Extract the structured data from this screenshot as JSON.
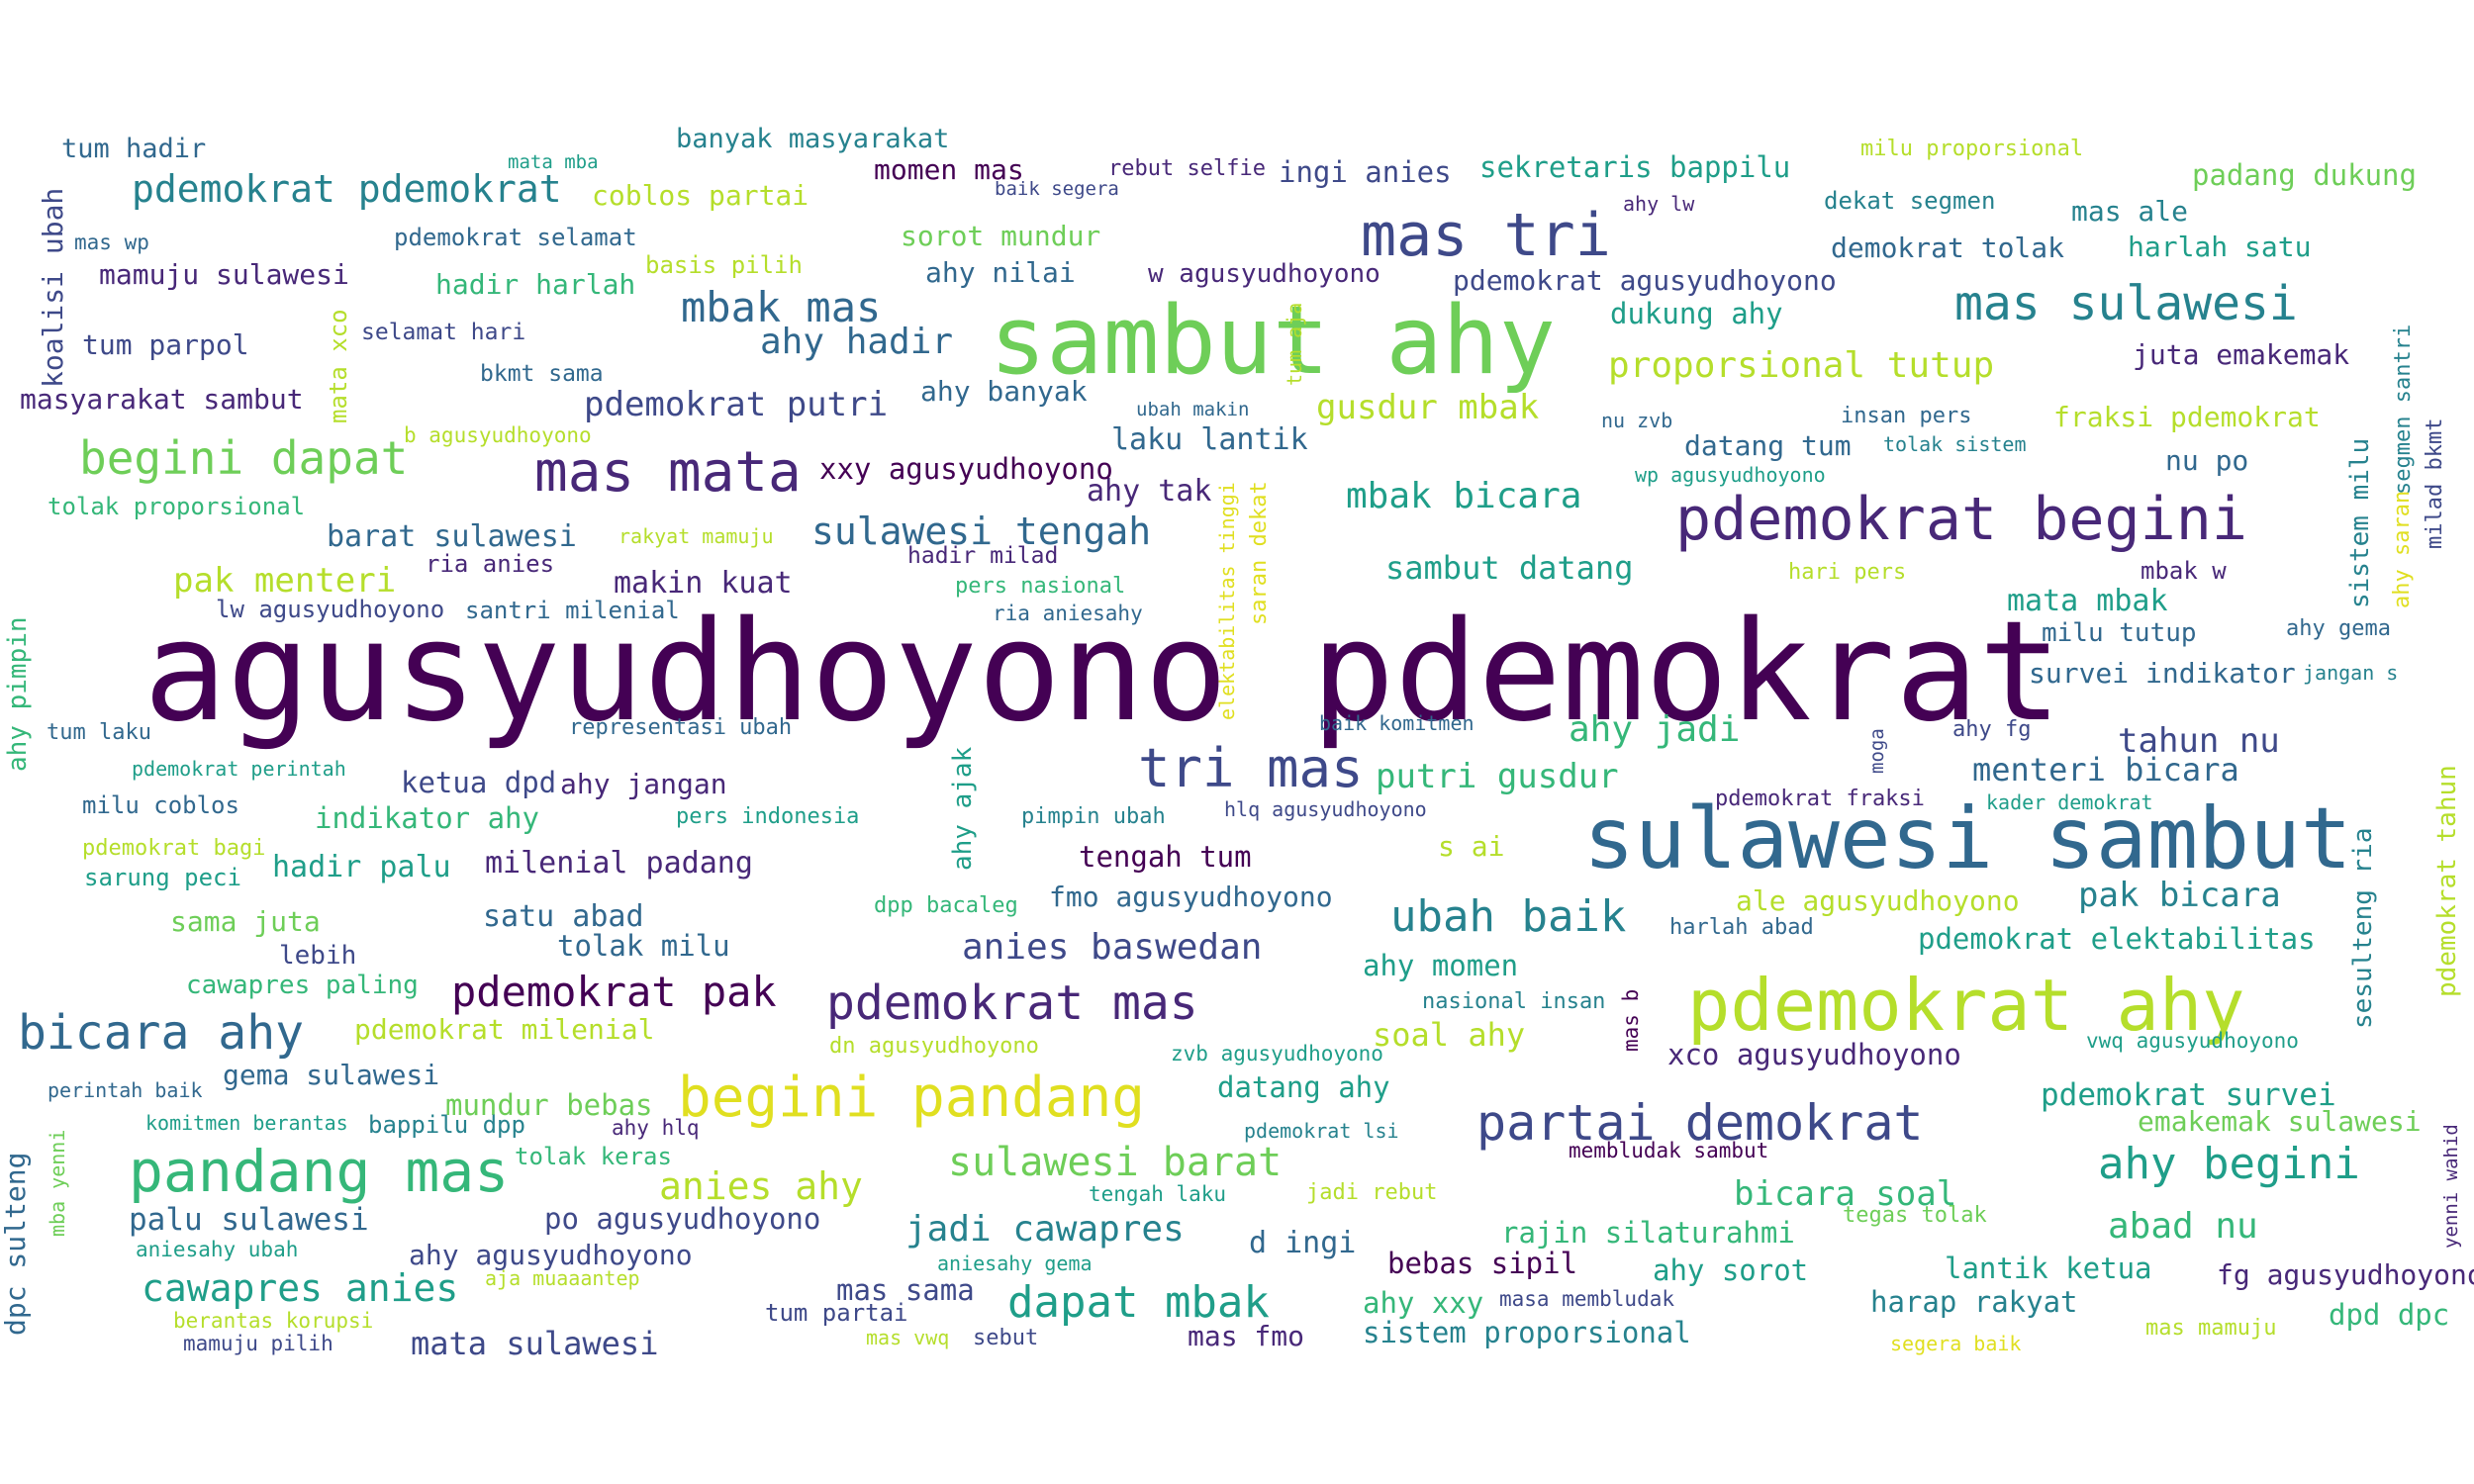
{
  "words": [
    {
      "id": "w0",
      "text": "agusyudhoyono pdemokrat",
      "c": 0
    },
    {
      "id": "w1",
      "text": "sambut ahy",
      "c": 7
    },
    {
      "id": "w2",
      "text": "sulawesi sambut",
      "c": 3
    },
    {
      "id": "w3",
      "text": "pdemokrat ahy",
      "c": 8
    },
    {
      "id": "w4",
      "text": "pdemokrat begini",
      "c": 1
    },
    {
      "id": "w5",
      "text": "mas tri",
      "c": 2
    },
    {
      "id": "w6",
      "text": "mas mata",
      "c": 1
    },
    {
      "id": "w7",
      "text": "tri mas",
      "c": 2
    },
    {
      "id": "w8",
      "text": "begini pandang",
      "c": 9
    },
    {
      "id": "w9",
      "text": "pandang mas",
      "c": 6
    },
    {
      "id": "w10",
      "text": "begini dapat",
      "c": 7
    },
    {
      "id": "w11",
      "text": "pdemokrat mas",
      "c": 1
    },
    {
      "id": "w12",
      "text": "mas sulawesi",
      "c": 4
    },
    {
      "id": "w13",
      "text": "partai demokrat",
      "c": 2
    },
    {
      "id": "w14",
      "text": "bicara ahy",
      "c": 3
    },
    {
      "id": "w15",
      "text": "ahy begini",
      "c": 5
    },
    {
      "id": "w16",
      "text": "pdemokrat pak",
      "c": 0
    },
    {
      "id": "w17",
      "text": "dapat mbak",
      "c": 5
    },
    {
      "id": "w18",
      "text": "ubah baik",
      "c": 4
    },
    {
      "id": "w19",
      "text": "pdemokrat pdemokrat",
      "c": 4
    },
    {
      "id": "w20",
      "text": "mbak mas",
      "c": 3
    },
    {
      "id": "w21",
      "text": "sulawesi tengah",
      "c": 3
    },
    {
      "id": "w22",
      "text": "sulawesi barat",
      "c": 7
    },
    {
      "id": "w23",
      "text": "anies baswedan",
      "c": 2
    },
    {
      "id": "w24",
      "text": "jadi cawapres",
      "c": 4
    },
    {
      "id": "w25",
      "text": "anies ahy",
      "c": 8
    },
    {
      "id": "w26",
      "text": "cawapres anies",
      "c": 5
    },
    {
      "id": "w27",
      "text": "mbak bicara",
      "c": 5
    },
    {
      "id": "w28",
      "text": "ahy jadi",
      "c": 6
    },
    {
      "id": "w29",
      "text": "putri gusdur",
      "c": 6
    },
    {
      "id": "w30",
      "text": "gusdur mbak",
      "c": 8
    },
    {
      "id": "w31",
      "text": "proporsional tutup",
      "c": 8
    },
    {
      "id": "w32",
      "text": "ahy hadir",
      "c": 3
    },
    {
      "id": "w33",
      "text": "pdemokrat putri",
      "c": 2
    },
    {
      "id": "w34",
      "text": "abad nu",
      "c": 6
    },
    {
      "id": "w35",
      "text": "tahun nu",
      "c": 2
    },
    {
      "id": "w36",
      "text": "menteri bicara",
      "c": 3
    },
    {
      "id": "w37",
      "text": "sambut datang",
      "c": 5
    },
    {
      "id": "w38",
      "text": "pak menteri",
      "c": 8
    },
    {
      "id": "w39",
      "text": "pak bicara",
      "c": 4
    },
    {
      "id": "w40",
      "text": "bicara soal",
      "c": 6
    },
    {
      "id": "w41",
      "text": "pdemokrat survei",
      "c": 5
    },
    {
      "id": "w42",
      "text": "palu sulawesi",
      "c": 3
    },
    {
      "id": "w43",
      "text": "mata sulawesi",
      "c": 2
    },
    {
      "id": "w44",
      "text": "barat sulawesi",
      "c": 3
    },
    {
      "id": "w45",
      "text": "makin kuat",
      "c": 1
    },
    {
      "id": "w46",
      "text": "satu abad",
      "c": 3
    },
    {
      "id": "w47",
      "text": "tolak milu",
      "c": 3
    },
    {
      "id": "w48",
      "text": "laku lantik",
      "c": 3
    },
    {
      "id": "w49",
      "text": "ahy tak",
      "c": 1
    },
    {
      "id": "w50",
      "text": "xxy agusyudhoyono",
      "c": 0
    },
    {
      "id": "w51",
      "text": "milenial padang",
      "c": 1
    },
    {
      "id": "w52",
      "text": "hadir palu",
      "c": 5
    },
    {
      "id": "w53",
      "text": "indikator ahy",
      "c": 6
    },
    {
      "id": "w54",
      "text": "ketua dpd",
      "c": 2
    },
    {
      "id": "w55",
      "text": "ahy jangan",
      "c": 1
    },
    {
      "id": "w56",
      "text": "tengah tum",
      "c": 0
    },
    {
      "id": "w57",
      "text": "fmo agusyudhoyono",
      "c": 3
    },
    {
      "id": "w58",
      "text": "ahy momen",
      "c": 5
    },
    {
      "id": "w59",
      "text": "soal ahy",
      "c": 8
    },
    {
      "id": "w60",
      "text": "datang ahy",
      "c": 5
    },
    {
      "id": "w61",
      "text": "xco agusyudhoyono",
      "c": 1
    },
    {
      "id": "w62",
      "text": "pdemokrat elektabilitas",
      "c": 5
    },
    {
      "id": "w63",
      "text": "ale agusyudhoyono",
      "c": 8
    },
    {
      "id": "w64",
      "text": "mata mbak",
      "c": 5
    },
    {
      "id": "w65",
      "text": "survei indikator",
      "c": 3
    },
    {
      "id": "w66",
      "text": "milu tutup",
      "c": 3
    },
    {
      "id": "w67",
      "text": "rajin silaturahmi",
      "c": 6
    },
    {
      "id": "w68",
      "text": "bebas sipil",
      "c": 0
    },
    {
      "id": "w69",
      "text": "ahy sorot",
      "c": 5
    },
    {
      "id": "w70",
      "text": "lantik ketua",
      "c": 5
    },
    {
      "id": "w71",
      "text": "harap rakyat",
      "c": 4
    },
    {
      "id": "w72",
      "text": "fg agusyudhoyono",
      "c": 1
    },
    {
      "id": "w73",
      "text": "dpd dpc",
      "c": 6
    },
    {
      "id": "w74",
      "text": "sistem proporsional",
      "c": 4
    },
    {
      "id": "w75",
      "text": "d ingi",
      "c": 3
    },
    {
      "id": "w76",
      "text": "mas sama",
      "c": 2
    },
    {
      "id": "w77",
      "text": "mas fmo",
      "c": 1
    },
    {
      "id": "w78",
      "text": "ahy xxy",
      "c": 6
    },
    {
      "id": "w79",
      "text": "po agusyudhoyono",
      "c": 2
    },
    {
      "id": "w80",
      "text": "ahy agusyudhoyono",
      "c": 2
    },
    {
      "id": "w81",
      "text": "gema sulawesi",
      "c": 3
    },
    {
      "id": "w82",
      "text": "mundur bebas",
      "c": 7
    },
    {
      "id": "w83",
      "text": "emakemak sulawesi",
      "c": 7
    },
    {
      "id": "w84",
      "text": "momen mas",
      "c": 0
    },
    {
      "id": "w85",
      "text": "ingi anies",
      "c": 2
    },
    {
      "id": "w86",
      "text": "sekretaris bappilu",
      "c": 5
    },
    {
      "id": "w87",
      "text": "padang dukung",
      "c": 7
    },
    {
      "id": "w88",
      "text": "mas ale",
      "c": 4
    },
    {
      "id": "w89",
      "text": "harlah satu",
      "c": 5
    },
    {
      "id": "w90",
      "text": "demokrat tolak",
      "c": 3
    },
    {
      "id": "w91",
      "text": "dekat segmen",
      "c": 4
    },
    {
      "id": "w92",
      "text": "pdemokrat agusyudhoyono",
      "c": 2
    },
    {
      "id": "w93",
      "text": "dukung ahy",
      "c": 5
    },
    {
      "id": "w94",
      "text": "juta emakemak",
      "c": 1
    },
    {
      "id": "w95",
      "text": "fraksi pdemokrat",
      "c": 8
    },
    {
      "id": "w96",
      "text": "datang tum",
      "c": 3
    },
    {
      "id": "w97",
      "text": "nu po",
      "c": 3
    },
    {
      "id": "w98",
      "text": "banyak masyarakat",
      "c": 4
    },
    {
      "id": "w99",
      "text": "coblos partai",
      "c": 8
    },
    {
      "id": "w100",
      "text": "sorot mundur",
      "c": 7
    },
    {
      "id": "w101",
      "text": "ahy nilai",
      "c": 3
    },
    {
      "id": "w102",
      "text": "w agusyudhoyono",
      "c": 1
    },
    {
      "id": "w103",
      "text": "hadir harlah",
      "c": 6
    },
    {
      "id": "w104",
      "text": "ahy banyak",
      "c": 3
    },
    {
      "id": "w105",
      "text": "tum hadir",
      "c": 3
    },
    {
      "id": "w106",
      "text": "mamuju sulawesi",
      "c": 1
    },
    {
      "id": "w107",
      "text": "tum parpol",
      "c": 2
    },
    {
      "id": "w108",
      "text": "masyarakat sambut",
      "c": 1
    },
    {
      "id": "w109",
      "text": "tolak proporsional",
      "c": 6
    },
    {
      "id": "w110",
      "text": "ria anies",
      "c": 1
    },
    {
      "id": "w111",
      "text": "lw agusyudhoyono",
      "c": 2
    },
    {
      "id": "w112",
      "text": "santri milenial",
      "c": 3
    },
    {
      "id": "w113",
      "text": "tum laku",
      "c": 3
    },
    {
      "id": "w114",
      "text": "representasi ubah",
      "c": 3
    },
    {
      "id": "w115",
      "text": "milu coblos",
      "c": 3
    },
    {
      "id": "w116",
      "text": "sarung peci",
      "c": 5
    },
    {
      "id": "w117",
      "text": "sama juta",
      "c": 7
    },
    {
      "id": "w118",
      "text": "lebih",
      "c": 2
    },
    {
      "id": "w119",
      "text": "cawapres paling",
      "c": 6
    },
    {
      "id": "w120",
      "text": "pdemokrat milenial",
      "c": 8
    },
    {
      "id": "w121",
      "text": "bappilu dpp",
      "c": 4
    },
    {
      "id": "w122",
      "text": "tolak keras",
      "c": 6
    },
    {
      "id": "w123",
      "text": "pers nasional",
      "c": 6
    },
    {
      "id": "w124",
      "text": "pers indonesia",
      "c": 5
    },
    {
      "id": "w125",
      "text": "pimpin ubah",
      "c": 4
    },
    {
      "id": "w126",
      "text": "hlq agusyudhoyono",
      "c": 2
    },
    {
      "id": "w127",
      "text": "dpp bacaleg",
      "c": 6
    },
    {
      "id": "w128",
      "text": "dn agusyudhoyono",
      "c": 8
    },
    {
      "id": "w129",
      "text": "zvb agusyudhoyono",
      "c": 5
    },
    {
      "id": "w130",
      "text": "nasional insan",
      "c": 4
    },
    {
      "id": "w131",
      "text": "s ai",
      "c": 8
    },
    {
      "id": "w132",
      "text": "harlah abad",
      "c": 3
    },
    {
      "id": "w133",
      "text": "pdemokrat fraksi",
      "c": 1
    },
    {
      "id": "w134",
      "text": "kader demokrat",
      "c": 5
    },
    {
      "id": "w135",
      "text": "ahy fg",
      "c": 2
    },
    {
      "id": "w136",
      "text": "ahy gema",
      "c": 3
    },
    {
      "id": "w137",
      "text": "jangan s",
      "c": 4
    },
    {
      "id": "w138",
      "text": "mbak w",
      "c": 1
    },
    {
      "id": "w139",
      "text": "hari pers",
      "c": 8
    },
    {
      "id": "w140",
      "text": "nu zvb",
      "c": 3
    },
    {
      "id": "w141",
      "text": "insan pers",
      "c": 3
    },
    {
      "id": "w142",
      "text": "tolak sistem",
      "c": 4
    },
    {
      "id": "w143",
      "text": "wp agusyudhoyono",
      "c": 5
    },
    {
      "id": "w144",
      "text": "ahy lw",
      "c": 1
    },
    {
      "id": "w145",
      "text": "milu proporsional",
      "c": 8
    },
    {
      "id": "w146",
      "text": "mata mba",
      "c": 5
    },
    {
      "id": "w147",
      "text": "pdemokrat selamat",
      "c": 3
    },
    {
      "id": "w148",
      "text": "basis pilih",
      "c": 8
    },
    {
      "id": "w149",
      "text": "mas wp",
      "c": 3
    },
    {
      "id": "w150",
      "text": "selamat hari",
      "c": 2
    },
    {
      "id": "w151",
      "text": "bkmt sama",
      "c": 3
    },
    {
      "id": "w152",
      "text": "b agusyudhoyono",
      "c": 8
    },
    {
      "id": "w153",
      "text": "rebut selfie",
      "c": 1
    },
    {
      "id": "w154",
      "text": "baik segera",
      "c": 2
    },
    {
      "id": "w155",
      "text": "ubah makin",
      "c": 3
    },
    {
      "id": "w156",
      "text": "rakyat mamuju",
      "c": 8
    },
    {
      "id": "w157",
      "text": "hadir milad",
      "c": 1
    },
    {
      "id": "w158",
      "text": "ria aniesahy",
      "c": 3
    },
    {
      "id": "w159",
      "text": "baik komitmen",
      "c": 3
    },
    {
      "id": "w160",
      "text": "pdemokrat perintah",
      "c": 5
    },
    {
      "id": "w161",
      "text": "pdemokrat bagi",
      "c": 8
    },
    {
      "id": "w162",
      "text": "perintah baik",
      "c": 3
    },
    {
      "id": "w163",
      "text": "komitmen berantas",
      "c": 5
    },
    {
      "id": "w164",
      "text": "ahy hlq",
      "c": 1
    },
    {
      "id": "w165",
      "text": "pdemokrat lsi",
      "c": 4
    },
    {
      "id": "w166",
      "text": "tengah laku",
      "c": 5
    },
    {
      "id": "w167",
      "text": "jadi rebut",
      "c": 8
    },
    {
      "id": "w168",
      "text": "aniesahy ubah",
      "c": 5
    },
    {
      "id": "w169",
      "text": "aja muaaantep",
      "c": 8
    },
    {
      "id": "w170",
      "text": "berantas korupsi",
      "c": 8
    },
    {
      "id": "w171",
      "text": "mamuju pilih",
      "c": 2
    },
    {
      "id": "w172",
      "text": "aniesahy gema",
      "c": 5
    },
    {
      "id": "w173",
      "text": "tum partai",
      "c": 2
    },
    {
      "id": "w174",
      "text": "mas vwq",
      "c": 8
    },
    {
      "id": "w175",
      "text": "sebut",
      "c": 2
    },
    {
      "id": "w176",
      "text": "masa membludak",
      "c": 2
    },
    {
      "id": "w177",
      "text": "membludak sambut",
      "c": 0
    },
    {
      "id": "w178",
      "text": "tegas tolak",
      "c": 7
    },
    {
      "id": "w179",
      "text": "segera baik",
      "c": 9
    },
    {
      "id": "w180",
      "text": "mas mamuju",
      "c": 8
    },
    {
      "id": "w181",
      "text": "vwq agusyudhoyono",
      "c": 5
    },
    {
      "id": "w182",
      "text": "koalisi ubah",
      "c": 2,
      "v": true
    },
    {
      "id": "w183",
      "text": "mata xco",
      "c": 8,
      "v": true
    },
    {
      "id": "w184",
      "text": "ahy pimpin",
      "c": 6,
      "v": true
    },
    {
      "id": "w185",
      "text": "dpc sulteng",
      "c": 3,
      "v": true
    },
    {
      "id": "w186",
      "text": "mba yenni",
      "c": 7,
      "v": true
    },
    {
      "id": "w187",
      "text": "tum aja",
      "c": 8,
      "v": true
    },
    {
      "id": "w188",
      "text": "saran dekat",
      "c": 9,
      "v": true
    },
    {
      "id": "w189",
      "text": "elektabilitas tinggi",
      "c": 9,
      "v": true
    },
    {
      "id": "w190",
      "text": "ahy ajak",
      "c": 5,
      "v": true
    },
    {
      "id": "w191",
      "text": "moga",
      "c": 2,
      "v": true
    },
    {
      "id": "w192",
      "text": "mas b",
      "c": 0,
      "v": true
    },
    {
      "id": "w193",
      "text": "sistem milu",
      "c": 4,
      "v": true
    },
    {
      "id": "w194",
      "text": "ahy saran",
      "c": 9,
      "v": true
    },
    {
      "id": "w195",
      "text": "segmen santri",
      "c": 4,
      "v": true
    },
    {
      "id": "w196",
      "text": "milad bkmt",
      "c": 2,
      "v": true
    },
    {
      "id": "w197",
      "text": "sesulteng ria",
      "c": 4,
      "v": true
    },
    {
      "id": "w198",
      "text": "pdemokrat tahun",
      "c": 8,
      "v": true
    },
    {
      "id": "w199",
      "text": "yenni wahid",
      "c": 1,
      "v": true
    }
  ]
}
